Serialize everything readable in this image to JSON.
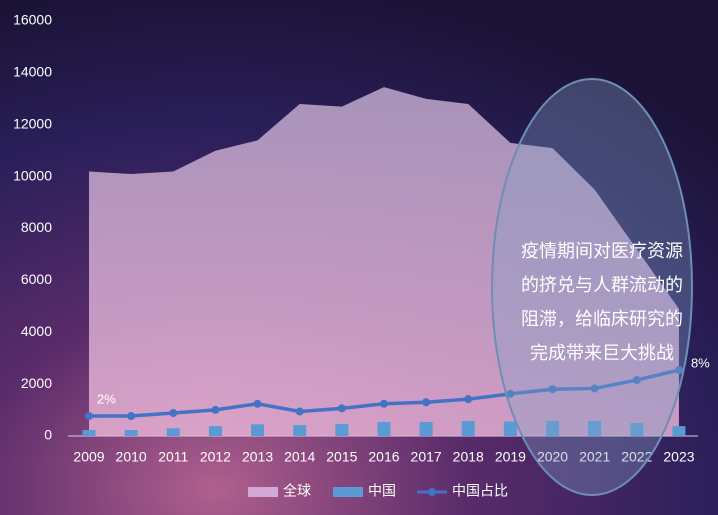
{
  "chart_data": {
    "type": "combo",
    "categories": [
      "2009",
      "2010",
      "2011",
      "2012",
      "2013",
      "2014",
      "2015",
      "2016",
      "2017",
      "2018",
      "2019",
      "2020",
      "2021",
      "2022",
      "2023"
    ],
    "series": [
      {
        "name": "全球",
        "kind": "area",
        "color": "#d2a9d6",
        "values": [
          10200,
          10100,
          10200,
          11000,
          11400,
          12800,
          12700,
          13450,
          13000,
          12800,
          11300,
          11100,
          9500,
          7200,
          4900
        ]
      },
      {
        "name": "中国",
        "kind": "bar",
        "color": "#5b9bd5",
        "values": [
          230,
          230,
          300,
          380,
          450,
          420,
          460,
          540,
          540,
          580,
          560,
          580,
          580,
          500,
          380
        ]
      },
      {
        "name": "中国占比",
        "kind": "line",
        "axis": "y2",
        "color": "#4472c4",
        "values": [
          2,
          2,
          2.4,
          2.8,
          3.6,
          2.6,
          3.0,
          3.6,
          3.8,
          4.2,
          4.9,
          5.5,
          5.6,
          6.7,
          8
        ],
        "value_labels": [
          "2%",
          null,
          null,
          null,
          null,
          null,
          null,
          null,
          null,
          null,
          null,
          null,
          null,
          null,
          "8%"
        ]
      }
    ],
    "ylim": [
      0,
      16000
    ],
    "yticks": [
      0,
      2000,
      4000,
      6000,
      8000,
      10000,
      12000,
      14000,
      16000
    ],
    "y2lim": [
      -0.6,
      53.5
    ],
    "legend": "bottom",
    "annotation": [
      "疫情期间对医疗资源",
      "的挤兑与人群流动的",
      "阻滞，给临床研究的",
      "完成带来巨大挑战"
    ]
  }
}
